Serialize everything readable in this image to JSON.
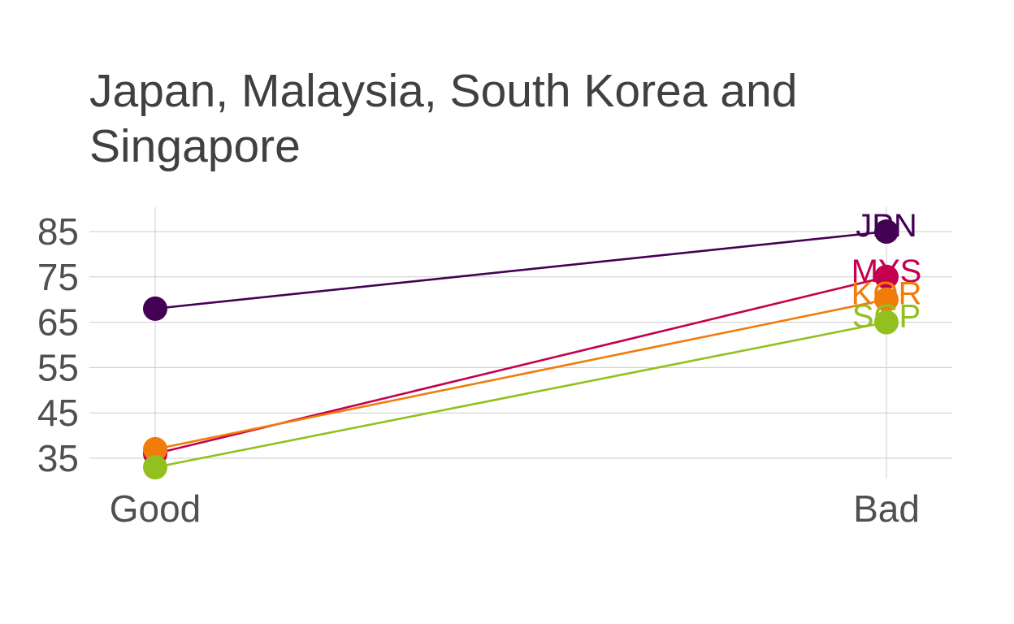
{
  "chart_data": {
    "type": "line",
    "title": "Japan, Malaysia, South Korea and Singapore",
    "xlabel": "",
    "ylabel": "",
    "categories": [
      "Good",
      "Bad"
    ],
    "y_ticks": [
      35,
      45,
      55,
      65,
      75,
      85
    ],
    "ylim": [
      31,
      90
    ],
    "grid": true,
    "legend": "none",
    "series": [
      {
        "name": "JPN",
        "values": [
          68,
          85
        ],
        "color": "#440154"
      },
      {
        "name": "MYS",
        "values": [
          36,
          75
        ],
        "color": "#c4004f"
      },
      {
        "name": "KOR",
        "values": [
          37,
          70
        ],
        "color": "#f07d0a"
      },
      {
        "name": "SGP",
        "values": [
          33,
          65
        ],
        "color": "#93c01f"
      }
    ]
  }
}
